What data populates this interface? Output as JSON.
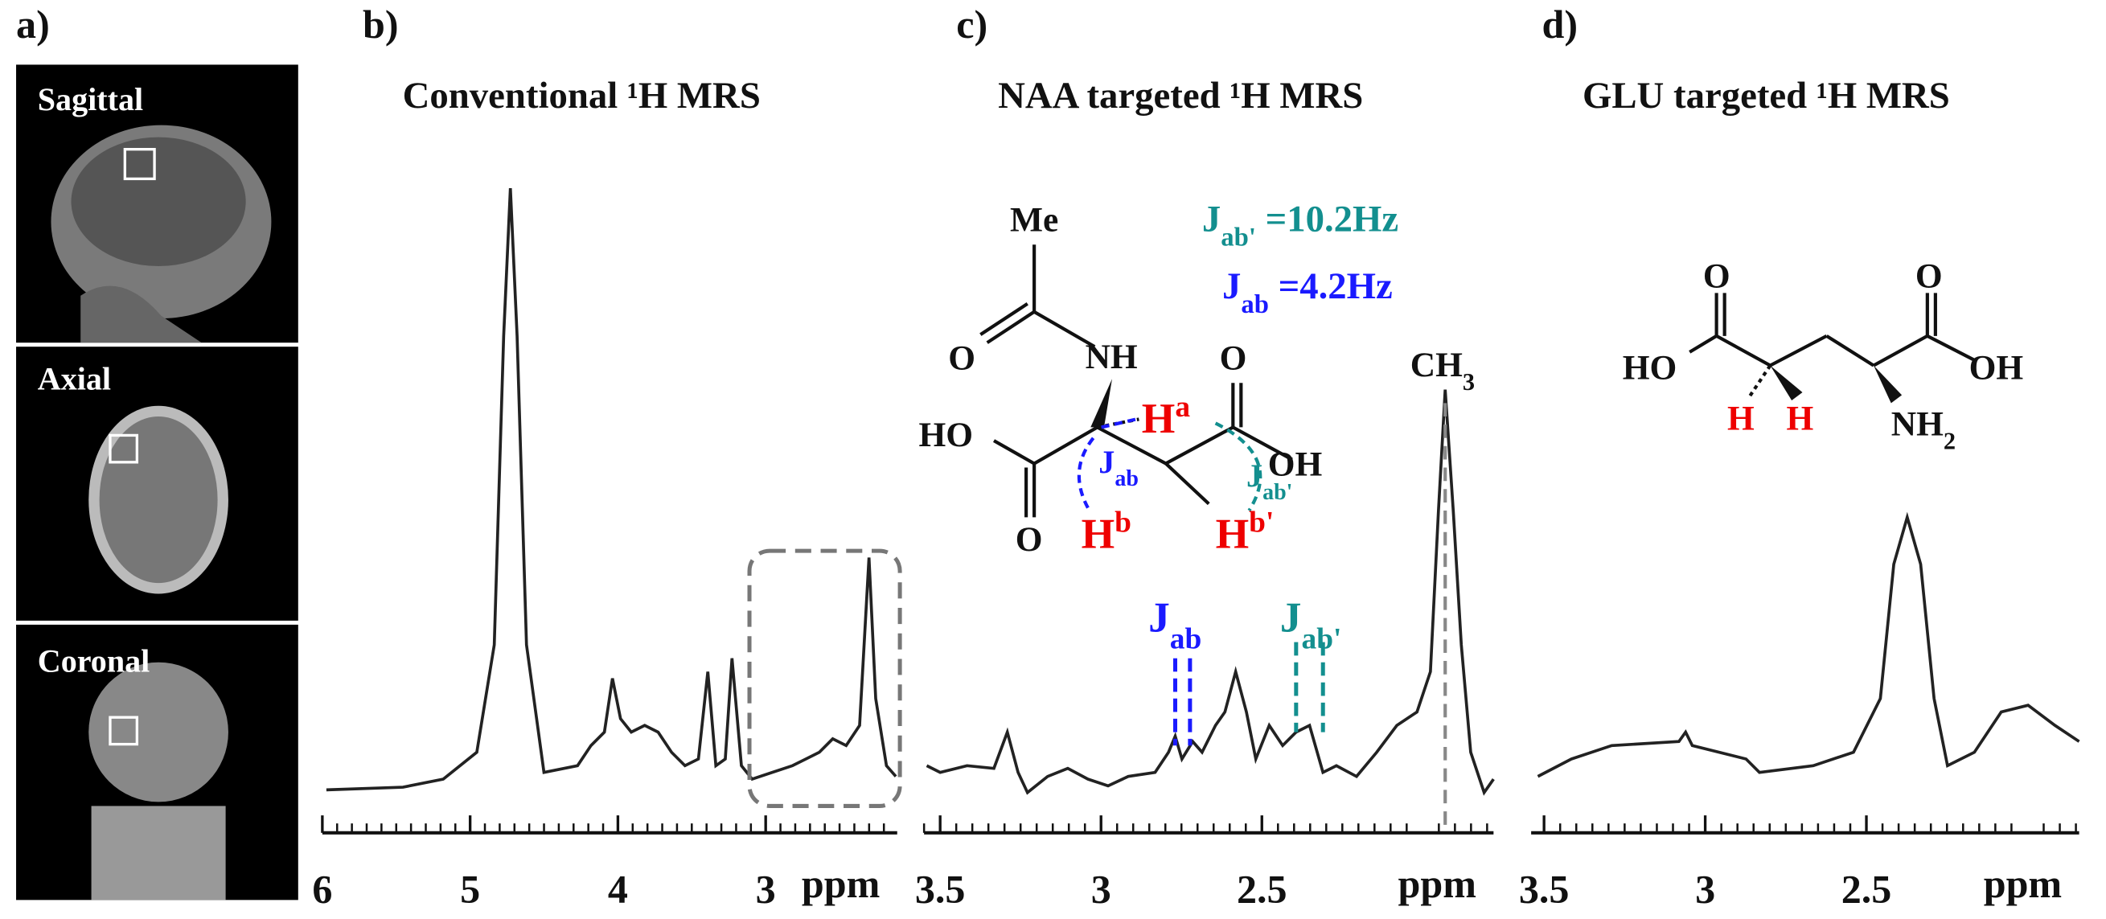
{
  "panel_a": {
    "label": "a)",
    "views": [
      "Sagittal",
      "Axial",
      "Coronal"
    ]
  },
  "chart_data": [
    {
      "type": "line",
      "label": "b)",
      "title": "Conventional ¹H MRS",
      "xlabel": "ppm",
      "xlim": [
        6,
        2.11
      ],
      "xticks": [
        6,
        5,
        4,
        3
      ]
    },
    {
      "type": "line",
      "label": "c)",
      "title": "NAA targeted ¹H MRS",
      "xlabel": "ppm",
      "xlim": [
        3.55,
        1.78
      ],
      "xticks": [
        3.5,
        3,
        2.5
      ]
    },
    {
      "type": "line",
      "label": "d)",
      "title": "GLU targeted ¹H MRS",
      "xlabel": "ppm",
      "xlim": [
        3.54,
        1.84
      ],
      "xticks": [
        3.5,
        3,
        2.5
      ]
    }
  ],
  "naa_structure": [
    [
      {
        "t": "Me"
      }
    ],
    [
      {
        "t": "O"
      }
    ],
    [
      {
        "t": "NH"
      }
    ],
    [
      {
        "t": "HO"
      }
    ],
    [
      {
        "t": "O"
      }
    ],
    [
      {
        "t": "OH"
      }
    ],
    [
      {
        "t": "O"
      }
    ],
    [
      {
        "t": "H"
      },
      {
        "sup": "a"
      }
    ],
    [
      {
        "t": "H"
      },
      {
        "sup": "b"
      }
    ],
    [
      {
        "t": "H"
      },
      {
        "sup": "b'"
      }
    ],
    [
      {
        "t": "J"
      },
      {
        "sub": "ab"
      }
    ],
    [
      {
        "t": "J"
      },
      {
        "sub": "ab'"
      }
    ],
    [
      {
        "t": "J"
      },
      {
        "sub": "ab'"
      },
      {
        "t": " =10.2Hz"
      }
    ],
    [
      {
        "t": "J"
      },
      {
        "sub": "ab"
      },
      {
        "t": " =4.2Hz"
      }
    ],
    [
      {
        "t": "J"
      },
      {
        "sub": "ab"
      }
    ],
    [
      {
        "t": "J"
      },
      {
        "sub": "ab'"
      }
    ],
    [
      {
        "t": "CH"
      },
      {
        "sub": "3"
      }
    ]
  ],
  "glu_structure": [
    [
      {
        "t": "O"
      }
    ],
    [
      {
        "t": "O"
      }
    ],
    [
      {
        "t": "HO"
      }
    ],
    [
      {
        "t": "OH"
      }
    ],
    [
      {
        "t": "H"
      }
    ],
    [
      {
        "t": "H"
      }
    ],
    [
      {
        "t": "NH"
      },
      {
        "sub": "2"
      }
    ]
  ]
}
